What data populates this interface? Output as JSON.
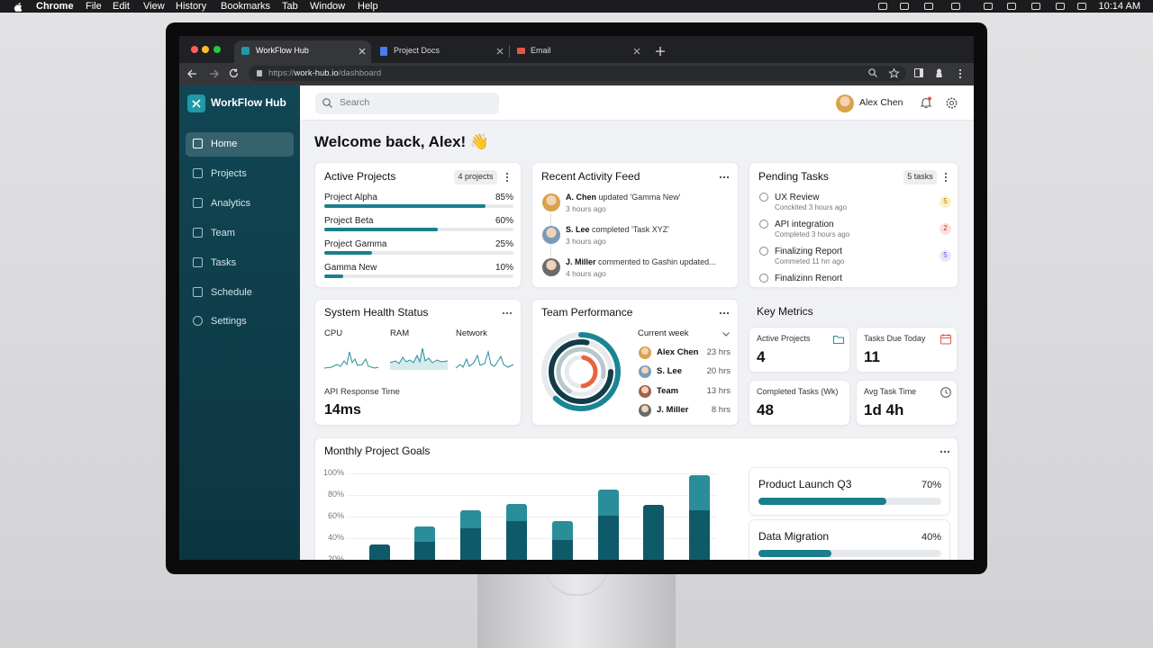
{
  "menu_bar": {
    "app": "Chrome",
    "items": [
      "File",
      "Edit",
      "View",
      "History",
      "Bookmarks",
      "Tab",
      "Window",
      "Help"
    ],
    "time": "10:14 AM"
  },
  "browser": {
    "tabs": [
      "WorkFlow Hub",
      "Project Docs",
      "Email"
    ],
    "url_scheme": "https://",
    "url_host": "work-hub.io",
    "url_path": "/dashboard"
  },
  "sidebar": {
    "brand": "WorkFlow Hub",
    "nav": [
      "Home",
      "Projects",
      "Analytics",
      "Team",
      "Tasks",
      "Schedule",
      "Settings"
    ]
  },
  "header": {
    "search_placeholder": "Search",
    "user": "Alex Chen"
  },
  "welcome": "Welcome back, Alex! 👋",
  "active_projects": {
    "title": "Active Projects",
    "badge": "4 projects",
    "items": [
      {
        "name": "Project Alpha",
        "progress": {
          "value": 85,
          "label": "85%"
        }
      },
      {
        "name": "Project Beta",
        "progress": {
          "value": 60,
          "label": "60%"
        }
      },
      {
        "name": "Project Gamma",
        "progress": {
          "value": 25,
          "label": "25%"
        }
      },
      {
        "name": "Gamma New",
        "progress": {
          "value": 10,
          "label": "10%"
        }
      }
    ]
  },
  "activity_feed": {
    "title": "Recent Activity Feed",
    "items": [
      {
        "actor": "A. Chen",
        "action": "updated 'Gamma New'",
        "time": "3 hours ago"
      },
      {
        "actor": "S. Lee",
        "action": "completed 'Task XYZ'",
        "time": "3 hours ago"
      },
      {
        "actor": "J. Miller",
        "action": "commented to Gashin updated...",
        "time": "4 hours ago"
      }
    ]
  },
  "pending_tasks": {
    "title": "Pending Tasks",
    "badge": "5 tasks",
    "items": [
      {
        "name": "UX Review",
        "meta": "Conckited 3 hours ago",
        "count": 5
      },
      {
        "name": "API integration",
        "meta": "Completed 3 hours ago",
        "count": 2
      },
      {
        "name": "Finalizing Report",
        "meta": "Commeted 11 hrr ago",
        "count": 5
      },
      {
        "name": "Finalizinn Renort"
      }
    ]
  },
  "system_health": {
    "title": "System Health Status",
    "metrics": [
      "CPU",
      "RAM",
      "Network"
    ],
    "api_label": "API Response Time",
    "api_value": "14ms"
  },
  "team_performance": {
    "title": "Team Performance",
    "period": "Current week",
    "members": [
      {
        "name": "Alex Chen",
        "hours": "23 hrs"
      },
      {
        "name": "S. Lee",
        "hours": "20 hrs"
      },
      {
        "name": "Team",
        "hours": "13 hrs"
      },
      {
        "name": "J. Miller",
        "hours": "8 hrs"
      }
    ]
  },
  "key_metrics": {
    "title": "Key Metrics",
    "cards": [
      {
        "label": "Active Projects",
        "value": 4
      },
      {
        "label": "Tasks Due Today",
        "value": 11
      },
      {
        "label": "Completed Tasks (Wk)",
        "value": 48
      },
      {
        "label": "Avg Task Time",
        "value": "1d 4h"
      }
    ]
  },
  "monthly_goals": {
    "title": "Monthly Project Goals",
    "chart": {
      "type": "bar",
      "ylim": [
        0,
        100
      ],
      "yticks": [
        {
          "value": 100,
          "label": "100%"
        },
        {
          "value": 80,
          "label": "80%"
        },
        {
          "value": 60,
          "label": "60%"
        },
        {
          "value": 40,
          "label": "40%"
        },
        {
          "value": 20,
          "label": "20%"
        }
      ],
      "grid": true,
      "series": [
        {
          "color": "#0e5a68",
          "values": [
            34,
            37,
            49,
            56,
            38,
            61,
            71,
            66
          ]
        },
        {
          "color": "#2a8e9a",
          "values": [
            null,
            14,
            17,
            16,
            18,
            24,
            null,
            32
          ]
        }
      ]
    },
    "goals": [
      {
        "name": "Product Launch Q3",
        "progress": {
          "value": 70,
          "label": "70%"
        }
      },
      {
        "name": "Data Migration",
        "progress": {
          "value": 40,
          "label": "40%"
        }
      }
    ]
  }
}
